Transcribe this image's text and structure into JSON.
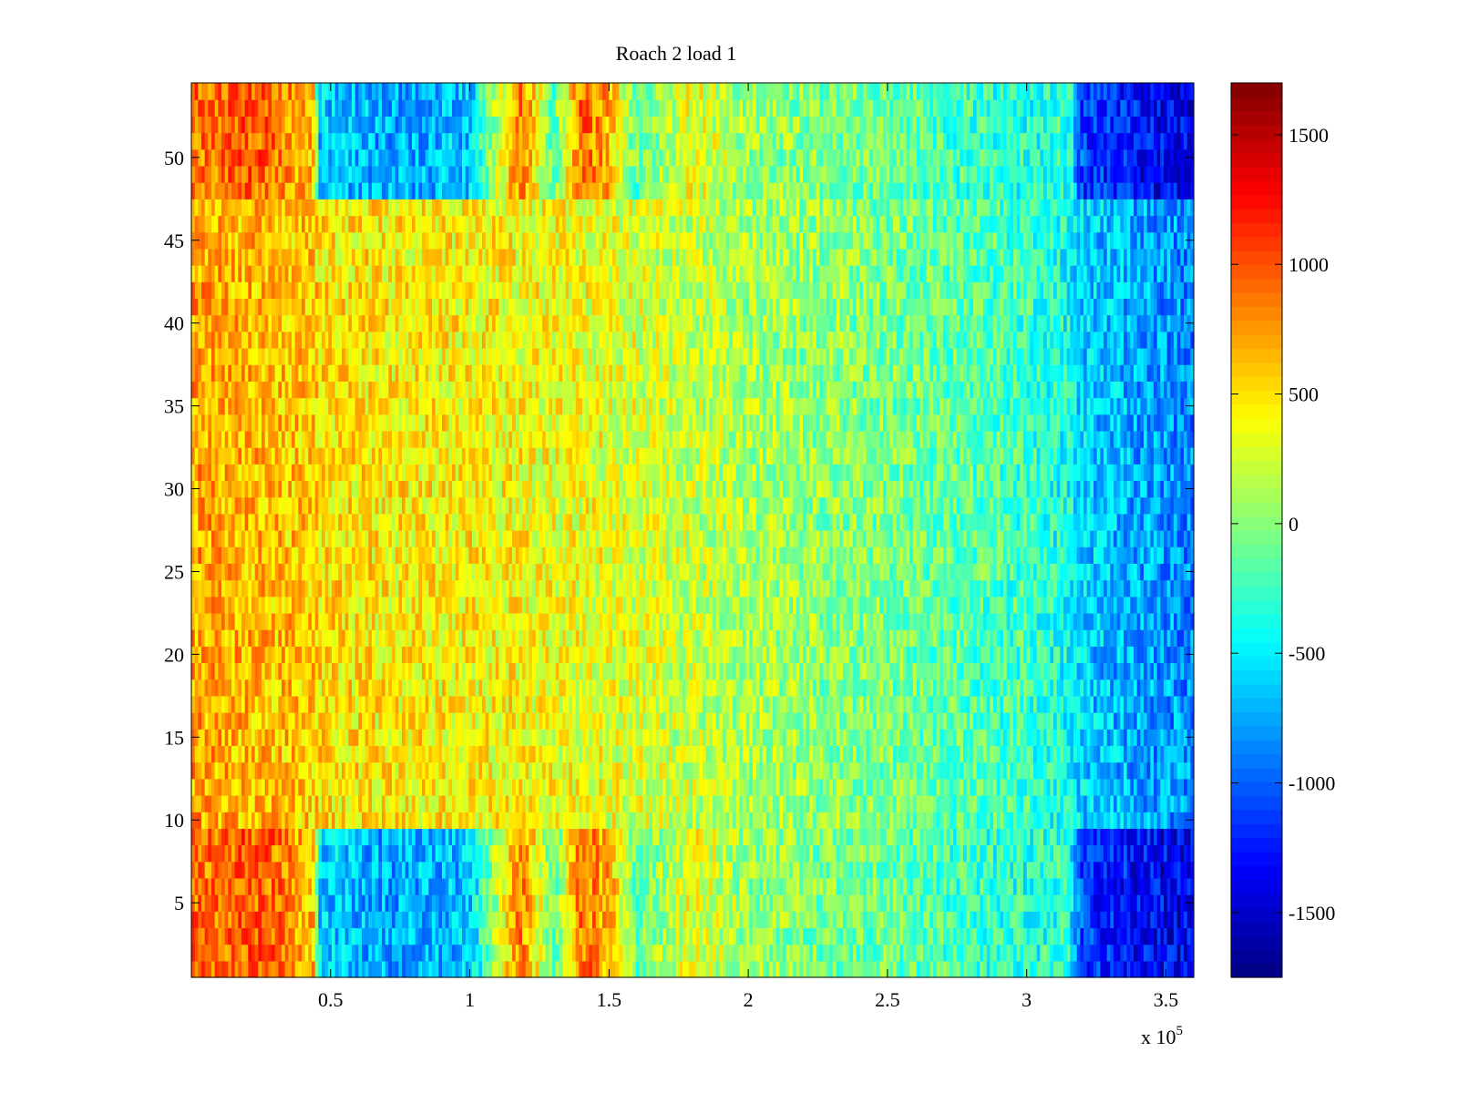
{
  "chart_data": {
    "type": "heatmap",
    "title": "Roach 2 load 1",
    "xlabel": "",
    "ylabel": "",
    "x_range": [
      0,
      360000
    ],
    "y_range": [
      0.5,
      54.5
    ],
    "rows": 54,
    "x_exponent_label": "x 10",
    "x_exponent_power": "5",
    "xticks": [
      {
        "value": 50000,
        "label": "0.5"
      },
      {
        "value": 100000,
        "label": "1"
      },
      {
        "value": 150000,
        "label": "1.5"
      },
      {
        "value": 200000,
        "label": "2"
      },
      {
        "value": 250000,
        "label": "2.5"
      },
      {
        "value": 300000,
        "label": "3"
      },
      {
        "value": 350000,
        "label": "3.5"
      }
    ],
    "yticks": [
      {
        "value": 5,
        "label": "5"
      },
      {
        "value": 10,
        "label": "10"
      },
      {
        "value": 15,
        "label": "15"
      },
      {
        "value": 20,
        "label": "20"
      },
      {
        "value": 25,
        "label": "25"
      },
      {
        "value": 30,
        "label": "30"
      },
      {
        "value": 35,
        "label": "35"
      },
      {
        "value": 40,
        "label": "40"
      },
      {
        "value": 45,
        "label": "45"
      },
      {
        "value": 50,
        "label": "50"
      }
    ],
    "colorbar": {
      "colormap": "jet",
      "clim": [
        -1750,
        1700
      ],
      "ticks": [
        {
          "value": 1500,
          "label": "1500"
        },
        {
          "value": 1000,
          "label": "1000"
        },
        {
          "value": 500,
          "label": "500"
        },
        {
          "value": 0,
          "label": "0"
        },
        {
          "value": -500,
          "label": "-500"
        },
        {
          "value": -1000,
          "label": "-1000"
        },
        {
          "value": -1500,
          "label": "-1500"
        }
      ]
    },
    "profile_x": [
      0,
      5000,
      20000,
      30000,
      44000,
      46000,
      70000,
      100000,
      118000,
      122000,
      130000,
      140000,
      150000,
      160000,
      180000,
      200000,
      250000,
      300000,
      315000,
      320000,
      340000,
      360000
    ],
    "profile_value_middle_rows": [
      750,
      700,
      650,
      620,
      560,
      500,
      450,
      420,
      400,
      380,
      370,
      350,
      320,
      280,
      200,
      120,
      -50,
      -250,
      -400,
      -600,
      -750,
      -850
    ],
    "profile_value_edge_rows": [
      900,
      850,
      950,
      900,
      600,
      -600,
      -750,
      -650,
      850,
      600,
      -200,
      900,
      700,
      -150,
      350,
      50,
      -100,
      -350,
      -300,
      -1100,
      -1300,
      -1400
    ],
    "edge_row_bands": [
      [
        1,
        9
      ],
      [
        48,
        54
      ]
    ]
  }
}
